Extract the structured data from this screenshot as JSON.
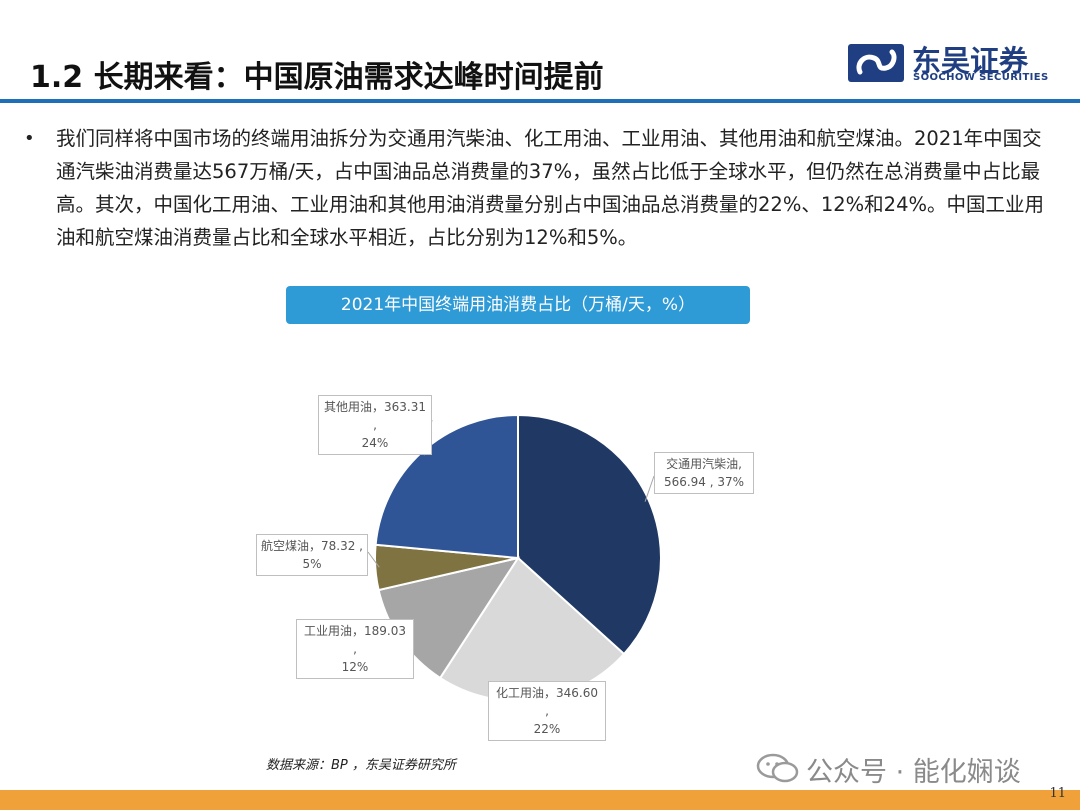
{
  "header": {
    "title": "1.2 长期来看：中国原油需求达峰时间提前",
    "logo_cn": "东吴证券",
    "logo_en": "SOOCHOW SECURITIES"
  },
  "body": {
    "bullet": "•",
    "paragraph": "我们同样将中国市场的终端用油拆分为交通用汽柴油、化工用油、工业用油、其他用油和航空煤油。2021年中国交通汽柴油消费量达567万桶/天，占中国油品总消费量的37%，虽然占比低于全球水平，但仍然在总消费量中占比最高。其次，中国化工用油、工业用油和其他用油消费量分别占中国油品总消费量的22%、12%和24%。中国工业用油和航空煤油消费量占比和全球水平相近，占比分别为12%和5%。"
  },
  "chart_data": {
    "type": "pie",
    "title": "2021年中国终端用油消费占比（万桶/天，%）",
    "slices": [
      {
        "label": "交通用汽柴油",
        "value": 566.94,
        "percent": "37%",
        "color": "#1f3864",
        "callout_line1": "交通用汽柴油,",
        "callout_line2": "566.94 , 37%"
      },
      {
        "label": "化工用油",
        "value": 346.6,
        "percent": "22%",
        "color": "#d9d9d9",
        "callout_line1": "化工用油，346.60 ,",
        "callout_line2": "22%"
      },
      {
        "label": "工业用油",
        "value": 189.03,
        "percent": "12%",
        "color": "#a6a6a6",
        "callout_line1": "工业用油，189.03 ,",
        "callout_line2": "12%"
      },
      {
        "label": "航空煤油",
        "value": 78.32,
        "percent": "5%",
        "color": "#7f7341",
        "callout_line1": "航空煤油，78.32 ,",
        "callout_line2": "5%"
      },
      {
        "label": "其他用油",
        "value": 363.31,
        "percent": "24%",
        "color": "#2f5597",
        "callout_line1": "其他用油，363.31 ,",
        "callout_line2": "24%"
      }
    ]
  },
  "footer": {
    "source": "数据来源：BP ，东吴证券研究所",
    "watermark": "公众号 · 能化娴谈",
    "page_number": "11"
  }
}
